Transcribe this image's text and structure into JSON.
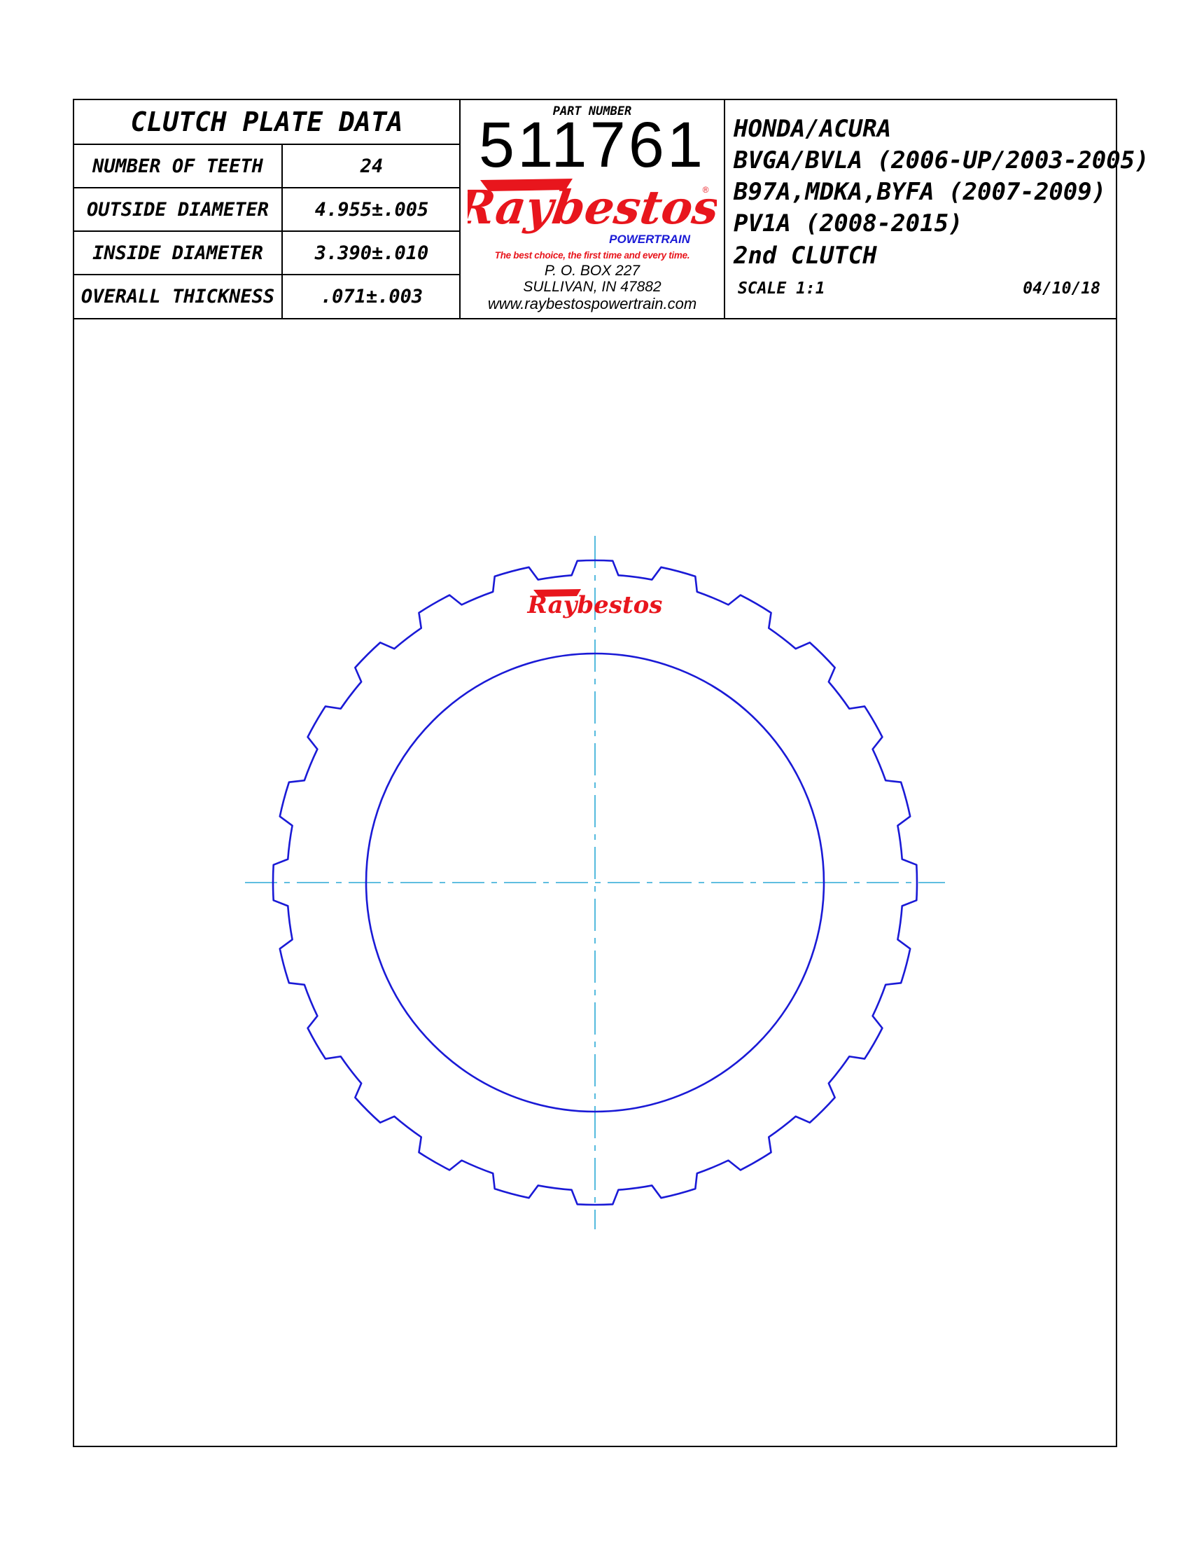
{
  "table": {
    "title": "CLUTCH PLATE DATA",
    "rows": [
      {
        "label": "NUMBER OF TEETH",
        "value": "24"
      },
      {
        "label": "OUTSIDE DIAMETER",
        "value": "4.955±.005"
      },
      {
        "label": "INSIDE DIAMETER",
        "value": "3.390±.010"
      },
      {
        "label": "OVERALL THICKNESS",
        "value": ".071±.003"
      }
    ]
  },
  "part": {
    "label": "PART NUMBER",
    "number": "511761"
  },
  "brand": {
    "logo_text": "Raybestos",
    "sub": "POWERTRAIN",
    "registered": "®",
    "tagline": "The best choice, the first time and every time.",
    "address_1": "P. O. BOX 227",
    "address_2": "SULLIVAN, IN 47882",
    "website": "www.raybestospowertrain.com",
    "red": "#e8161d",
    "blue": "#1a1ad6"
  },
  "application": {
    "line_1": "HONDA/ACURA",
    "line_2": "BVGA/BVLA (2006-UP/2003-2005)",
    "line_3": "B97A,MDKA,BYFA (2007-2009)",
    "line_4": "PV1A (2008-2015)",
    "line_5": "2nd CLUTCH",
    "scale": "SCALE 1:1",
    "date": "04/10/18"
  },
  "drawing": {
    "teeth": 24,
    "plate_logo": "Raybestos",
    "outline_color": "#1a1ad6",
    "centerline_color": "#2aa9d6"
  }
}
